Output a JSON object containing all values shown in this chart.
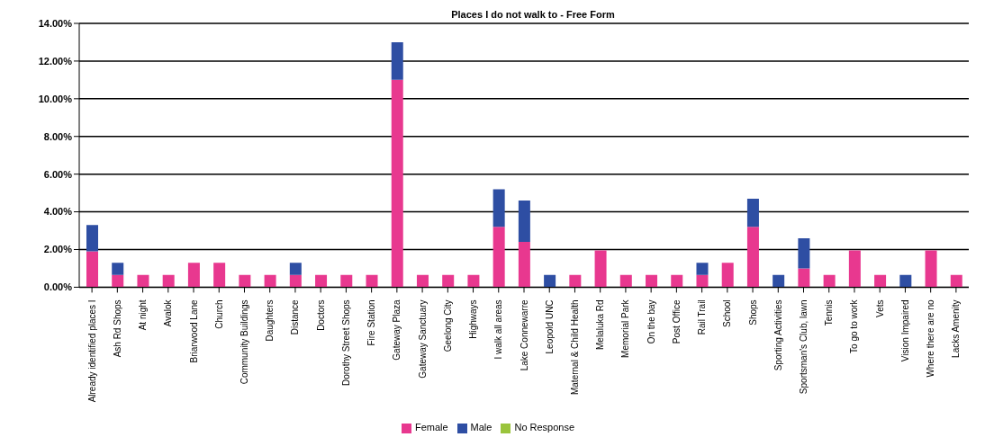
{
  "chart_data": {
    "type": "bar",
    "title": "Places I do not walk to - Free Form",
    "stacked": true,
    "grid": "y",
    "legend": "bottom",
    "categories": [
      "Already identified places I",
      "Ash Rd Shops",
      "At night",
      "Avalok",
      "Briarwood Lane",
      "Church",
      "Community Buildings",
      "Daughters",
      "Distance",
      "Doctors",
      "Dorothy Street Shops",
      "Fire Station",
      "Gateway Plaza",
      "Gateway Sanctuary",
      "Geelong City",
      "Highways",
      "I walk all areas",
      "Lake Connewarre",
      "Leopold UNC",
      "Maternal & Child Health",
      "Melaluka Rd",
      "Memorial Park",
      "On the bay",
      "Post Office",
      "Rail Trail",
      "School",
      "Shops",
      "Sporting Activities",
      "Sportsman's Club, lawn",
      "Tennis",
      "To go to work",
      "Vets",
      "Vision Impaired",
      "Where there are no",
      "Lacks Amenity"
    ],
    "series": [
      {
        "name": "Female",
        "color": "#e8388f",
        "values": [
          1.9,
          0.65,
          0.65,
          0.65,
          1.3,
          1.3,
          0.65,
          0.65,
          0.65,
          0.65,
          0.65,
          0.65,
          11,
          0.65,
          0.65,
          0.65,
          3.2,
          2.4,
          0,
          0.65,
          1.95,
          0.65,
          0.65,
          0.65,
          0.65,
          1.3,
          3.2,
          0,
          1.0,
          0.65,
          1.95,
          0.65,
          0,
          1.95,
          0.65
        ]
      },
      {
        "name": "Male",
        "color": "#2e4ea3",
        "values": [
          1.4,
          0.65,
          0,
          0,
          0,
          0,
          0,
          0,
          0.65,
          0,
          0,
          0,
          2.0,
          0,
          0,
          0,
          2.0,
          2.2,
          0.65,
          0,
          0,
          0,
          0,
          0,
          0.65,
          0,
          1.5,
          0.65,
          1.6,
          0,
          0,
          0,
          0.65,
          0,
          0
        ]
      },
      {
        "name": "No Response",
        "color": "#9ac43c",
        "values": [
          0,
          0,
          0,
          0,
          0,
          0,
          0,
          0,
          0,
          0,
          0,
          0,
          0,
          0,
          0,
          0,
          0,
          0,
          0,
          0,
          0,
          0,
          0,
          0,
          0,
          0,
          0,
          0,
          0,
          0,
          0,
          0,
          0,
          0,
          0
        ]
      }
    ],
    "ylim": [
      0,
      14
    ],
    "yticks": [
      {
        "value": 0,
        "label": "0.00%"
      },
      {
        "value": 2,
        "label": "2.00%"
      },
      {
        "value": 4,
        "label": "4.00%"
      },
      {
        "value": 6,
        "label": "6.00%"
      },
      {
        "value": 8,
        "label": "8.00%"
      },
      {
        "value": 10,
        "label": "10.00%"
      },
      {
        "value": 12,
        "label": "12.00%"
      },
      {
        "value": 14,
        "label": "14.00%"
      }
    ]
  }
}
